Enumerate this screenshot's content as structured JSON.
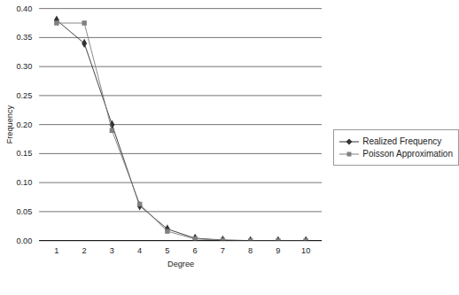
{
  "chart_data": {
    "type": "line",
    "x_label": "Degree",
    "y_label": "Frequency",
    "categories": [
      1,
      2,
      3,
      4,
      5,
      6,
      7,
      8,
      9,
      10
    ],
    "series": [
      {
        "name": "Realized Frequency",
        "color": "#333333",
        "marker": "diamond",
        "values": [
          0.38,
          0.34,
          0.2,
          0.06,
          0.02,
          0.004,
          0.001,
          0,
          0,
          0
        ]
      },
      {
        "name": "Poisson Approximation",
        "color": "#808080",
        "marker": "square",
        "values": [
          0.375,
          0.375,
          0.19,
          0.063,
          0.016,
          0.003,
          0.0005,
          0,
          0,
          0
        ]
      }
    ],
    "ylim": [
      0,
      0.4
    ],
    "yticks": [
      0,
      0.05,
      0.1,
      0.15,
      0.2,
      0.25,
      0.3,
      0.35,
      0.4
    ],
    "grid": true,
    "legend": "right"
  }
}
